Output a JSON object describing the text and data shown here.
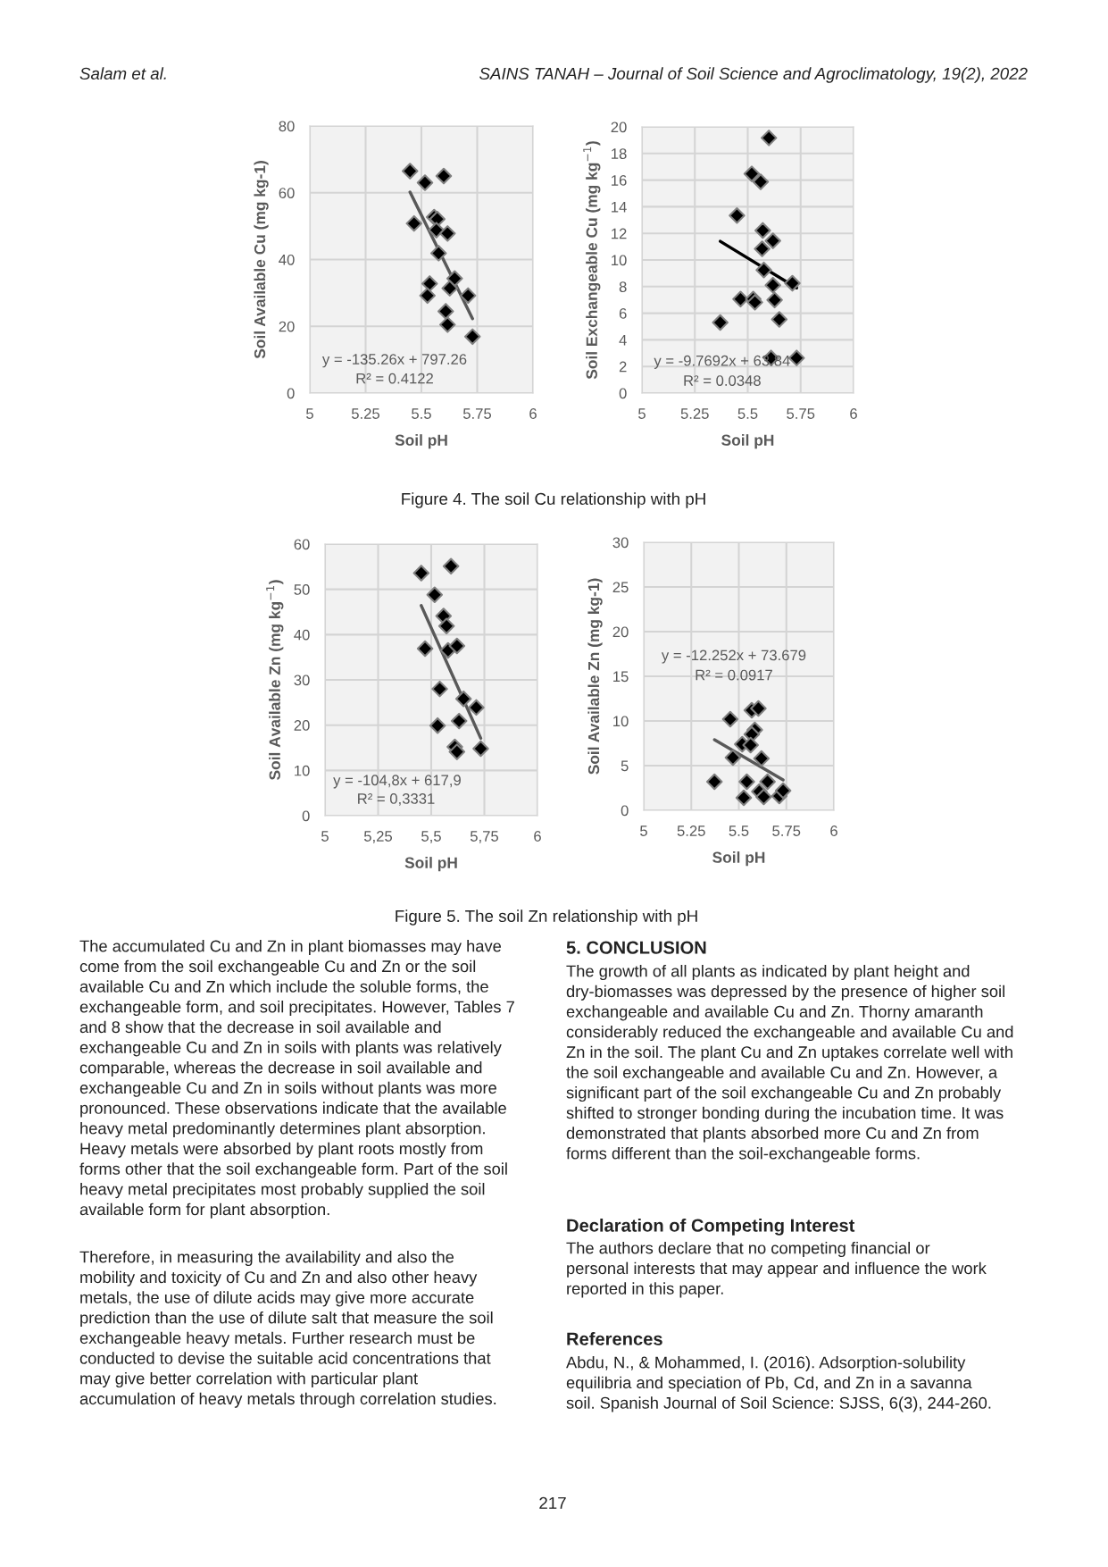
{
  "chart_data": [
    {
      "type": "scatter",
      "xlabel": "Soil pH",
      "ylabel": "Soil Available Cu (mg kg-1)",
      "xlim": [
        5,
        6
      ],
      "ylim": [
        0,
        80
      ],
      "xticks": [
        5,
        5.25,
        5.5,
        5.75,
        6
      ],
      "yticks": [
        0,
        20,
        40,
        60,
        80
      ],
      "grid": true,
      "series": [
        {
          "marker": "diamond",
          "color": "#000000",
          "x": [
            5.449,
            5.516,
            5.6,
            5.467,
            5.557,
            5.571,
            5.567,
            5.617,
            5.577,
            5.649,
            5.627,
            5.537,
            5.527,
            5.709,
            5.609,
            5.617,
            5.729
          ],
          "values": [
            66.5,
            63.0,
            65.0,
            50.8,
            52.7,
            52.1,
            48.8,
            47.8,
            41.9,
            34.3,
            31.4,
            32.8,
            29.2,
            29.2,
            24.5,
            20.5,
            16.9
          ]
        },
        {
          "type": "line",
          "color": "#595959",
          "x": [
            5.449,
            5.729
          ],
          "values": [
            60.2,
            22.3
          ]
        }
      ],
      "annotations": [
        "y = -135.26x + 797.26",
        "R² = 0.4122",
        "Salam et al.",
        "SAINS TANAH – Journal of Soil Science and Agroclimatology, 19(2), 2022"
      ]
    },
    {
      "type": "scatter",
      "xlabel": "Soil pH",
      "ylabel": "Soil Exchangeable Cu (mg kg$^{−1}$)",
      "xlim": [
        5,
        6
      ],
      "ylim": [
        0,
        20
      ],
      "xticks": [
        5,
        5.25,
        5.5,
        5.75,
        6
      ],
      "yticks": [
        0,
        2,
        4,
        6,
        8,
        10,
        12,
        14,
        16,
        18,
        20
      ],
      "grid": true,
      "series": [
        {
          "marker": "diamond",
          "color": "#000000",
          "x": [
            5.6,
            5.519,
            5.561,
            5.449,
            5.571,
            5.619,
            5.568,
            5.576,
            5.711,
            5.619,
            5.466,
            5.526,
            5.534,
            5.627,
            5.649,
            5.37,
            5.61,
            5.731
          ],
          "values": [
            19.17,
            16.47,
            15.87,
            13.34,
            12.22,
            11.44,
            10.84,
            9.25,
            8.25,
            8.11,
            7.06,
            7.06,
            6.82,
            6.99,
            5.54,
            5.3,
            2.64,
            2.64
          ]
        },
        {
          "type": "line",
          "color": "#000000",
          "x": [
            5.37,
            5.731
          ],
          "values": [
            11.4,
            7.9
          ]
        }
      ],
      "annotations": [
        "y = -9.7692x + 63.84",
        "R² = 0.0348",
        "Figure 4. The soil Cu relationship with pH"
      ]
    },
    {
      "type": "scatter",
      "xlabel": "Soil pH",
      "ylabel": "Soil Available Zn (mg kg$^{−1}$)",
      "xlim": [
        5,
        6
      ],
      "ylim": [
        0,
        60
      ],
      "xticks": [
        5,
        {
          "value": 5.25,
          "label": "5,25"
        },
        {
          "value": 5.5,
          "label": "5,5"
        },
        {
          "value": 5.75,
          "label": "5,75"
        },
        6
      ],
      "yticks": [
        0,
        10,
        20,
        30,
        40,
        50,
        60
      ],
      "grid": true,
      "series": [
        {
          "marker": "diamond",
          "color": "#000000",
          "x": [
            5.593,
            5.453,
            5.516,
            5.558,
            5.572,
            5.471,
            5.579,
            5.621,
            5.54,
            5.652,
            5.712,
            5.631,
            5.53,
            5.611,
            5.621,
            5.733
          ],
          "values": [
            55.1,
            53.6,
            48.8,
            44.1,
            41.9,
            36.9,
            36.5,
            37.5,
            28.0,
            25.8,
            23.9,
            20.9,
            19.9,
            15.2,
            14.1,
            14.8
          ]
        },
        {
          "type": "line",
          "color": "#595959",
          "x": [
            5.453,
            5.733
          ],
          "values": [
            46.4,
            17.1
          ]
        }
      ],
      "annotations": [
        "y = -104,8x + 617,9",
        "R² = 0,3331"
      ]
    },
    {
      "type": "scatter",
      "xlabel": "Soil pH",
      "ylabel": "Soil Available Zn (mg kg-1)",
      "xlim": [
        5,
        6
      ],
      "ylim": [
        0,
        30
      ],
      "xticks": [
        5,
        5.25,
        5.5,
        5.75,
        6
      ],
      "yticks": [
        0,
        5,
        10,
        15,
        20,
        25,
        30
      ],
      "grid": true,
      "series": [
        {
          "marker": "diamond",
          "color": "#000000",
          "x": [
            5.455,
            5.568,
            5.603,
            5.584,
            5.568,
            5.518,
            5.562,
            5.469,
            5.619,
            5.372,
            5.542,
            5.651,
            5.608,
            5.631,
            5.526,
            5.713,
            5.733
          ],
          "values": [
            10.2,
            11.2,
            11.4,
            9.0,
            8.5,
            7.4,
            7.3,
            5.9,
            5.8,
            3.2,
            3.2,
            3.2,
            2.1,
            1.5,
            1.4,
            1.6,
            2.2
          ]
        },
        {
          "type": "line",
          "color": "#595959",
          "x": [
            5.372,
            5.733
          ],
          "values": [
            7.9,
            3.4
          ]
        }
      ],
      "annotations": [
        "y = -12.252x + 73.679",
        "R² = 0.0917",
        "Figure 5. The soil Zn relationship with pH",
        "The accumulated Cu and Zn in plant biomasses may have\ncome from the soil exchangeable Cu and Zn or the soil\navailable Cu and Zn which include the soluble forms, the\nexchangeable form, and soil precipitates. However, Tables 7\nand 8 show that the decrease in soil available and\nexchangeable Cu and Zn in soils with plants was relatively\ncomparable, whereas the decrease in soil available and\nexchangeable Cu and Zn in soils without plants was more\npronounced. These observations indicate that the available\nheavy metal predominantly determines plant absorption.\nHeavy metals were absorbed by plant roots mostly from\nforms other that the soil exchangeable form. Part of the soil\nheavy metal precipitates most probably supplied the soil\navailable form for plant absorption.",
        "Therefore, in measuring the availability and also the\nmobility and toxicity of Cu and Zn and also other heavy\nmetals, the use of dilute acids may give more accurate\nprediction than the use of dilute salt that measure the soil\nexchangeable heavy metals. Further research must be\nconducted to devise the suitable acid concentrations that\nmay give better correlation with particular plant\naccumulation of heavy metals through correlation studies.",
        "5. CONCLUSION",
        "The growth of all plants as indicated by plant height and\ndry-biomasses was depressed by the presence of higher soil\nexchangeable and available Cu and Zn. Thorny amaranth\nconsiderably reduced the exchangeable and available Cu and\nZn in the soil. The plant Cu and Zn uptakes correlate well with\nthe soil exchangeable and available Cu and Zn. However, a\nsignificant part of the soil exchangeable Cu and Zn probably\nshifted to stronger bonding during the incubation time. It was\ndemonstrated that plants absorbed more Cu and Zn from\nforms different than the soil-exchangeable forms.",
        "Declaration of Competing Interest",
        "The authors declare that no competing financial or\npersonal interests that may appear and influence the work\nreported in this paper.",
        "References",
        "Abdu, N., & Mohammed, I. (2016). Adsorption-solubility\nequilibria and speciation of Pb, Cd, and Zn in a savanna\nsoil. Spanish Journal of Soil Science: SJSS, 6(3), 244-260.",
        "217"
      ]
    }
  ]
}
